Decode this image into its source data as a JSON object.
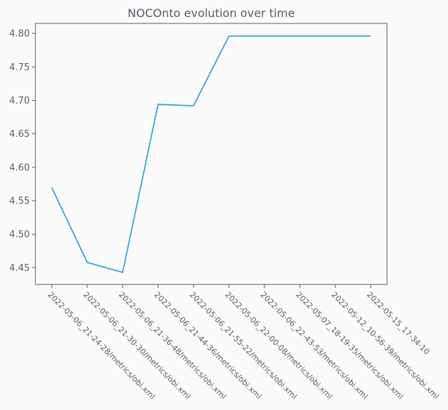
{
  "chart_data": {
    "type": "line",
    "title": "NOCOnto evolution over time",
    "xlabel": "",
    "ylabel": "",
    "categories": [
      "2022-05-06_21-24-28/metrics/obi.xml",
      "2022-05-06_21-30-30/metrics/obi.xml",
      "2022-05-06_21-36-48/metrics/obi.xml",
      "2022-05-06_21-44-36/metrics/obi.xml",
      "2022-05-06_21-55-22/metrics/obi.xml",
      "2022-05-06_22-00-08/metrics/obi.xml",
      "2022-05-06_22-43-53/metrics/obi.xml",
      "2022-05-07_18-19-35/metrics/obi.xml",
      "2022-05-12_10-56-39/metrics/obi.xml",
      "2022-05-15_17-34-10"
    ],
    "series": [
      {
        "values": [
          4.57,
          4.458,
          4.443,
          4.694,
          4.692,
          4.796,
          4.796,
          4.796,
          4.796,
          4.796
        ],
        "color": "#3ba3d0"
      }
    ],
    "ylim": [
      4.425,
      4.815
    ],
    "yticks": [
      "4.45",
      "4.50",
      "4.55",
      "4.60",
      "4.65",
      "4.70",
      "4.75",
      "4.80"
    ],
    "grid": false,
    "legend": "none"
  }
}
